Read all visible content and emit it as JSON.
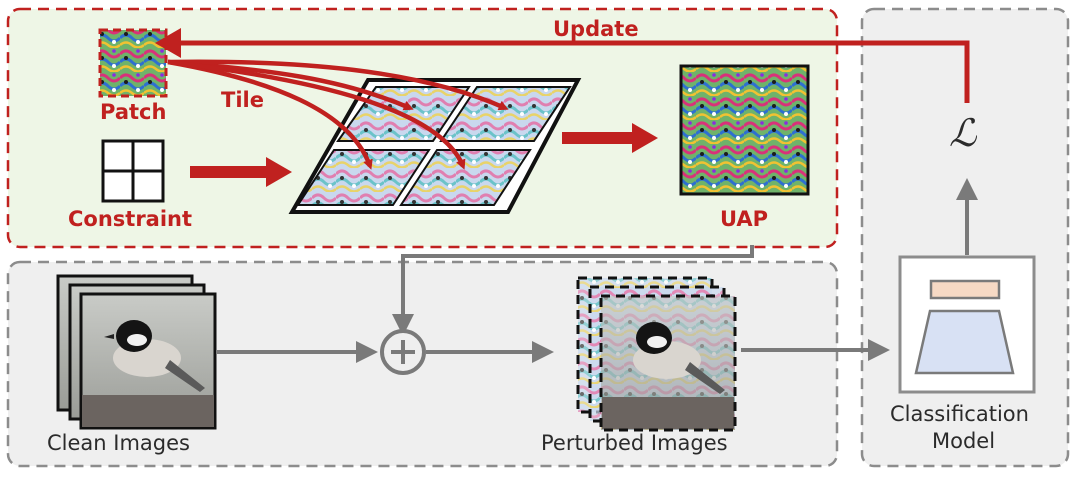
{
  "labels": {
    "update": "Update",
    "tile": "Tile",
    "patch": "Patch",
    "constraint": "Constraint",
    "uap": "UAP",
    "loss_symbol": "ℒ",
    "plus_symbol": "+",
    "clean_images": "Clean Images",
    "perturbed_images": "Perturbed Images",
    "classification_line1": "Classification",
    "classification_line2": "Model"
  },
  "colors": {
    "accent_red": "#c0211f",
    "green_panel": "#eef6e6",
    "gray_panel": "#efefef",
    "arrow_gray": "#7a7a7a",
    "dash_gray": "#8c8c8c",
    "model_top": "#f6d9c4",
    "model_body": "#d8e1f4"
  }
}
